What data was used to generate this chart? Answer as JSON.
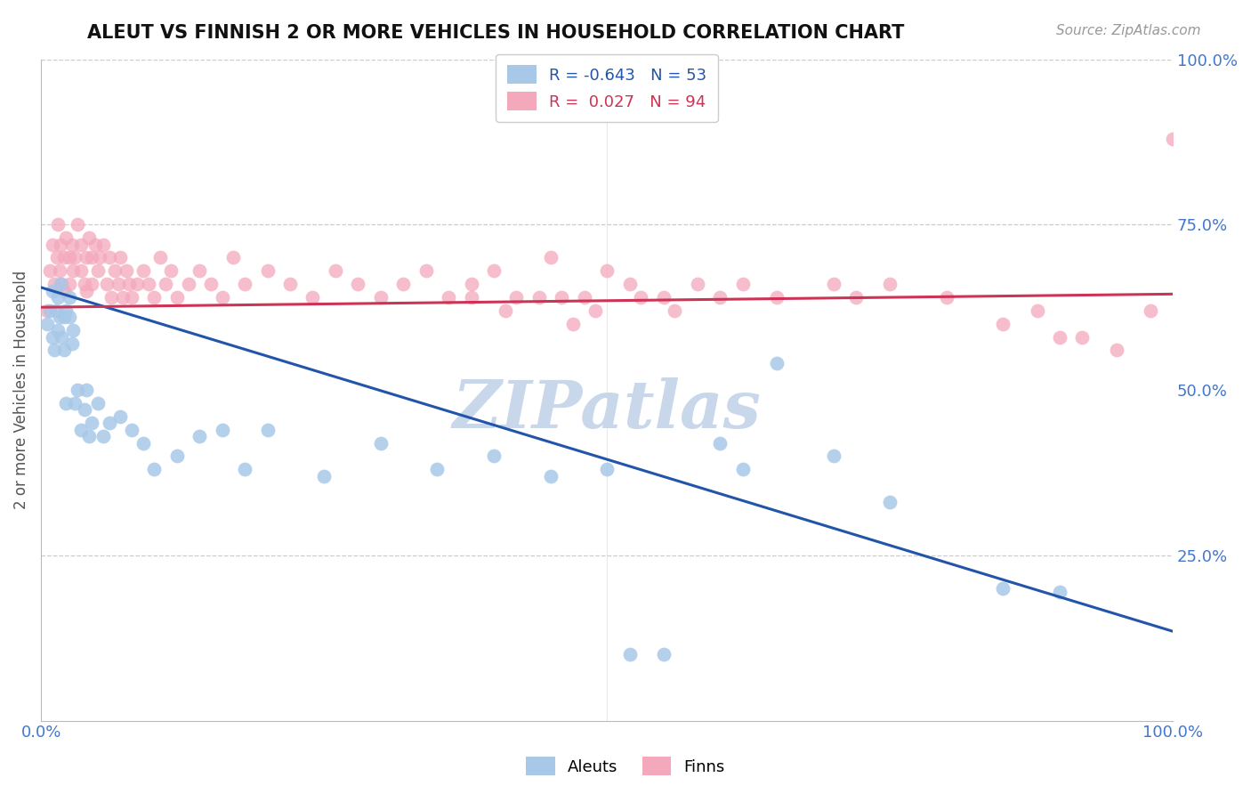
{
  "title": "ALEUT VS FINNISH 2 OR MORE VEHICLES IN HOUSEHOLD CORRELATION CHART",
  "source_text": "Source: ZipAtlas.com",
  "ylabel": "2 or more Vehicles in Household",
  "xlim": [
    0.0,
    1.0
  ],
  "ylim": [
    0.0,
    1.0
  ],
  "aleut_color": "#a8c8e8",
  "finn_color": "#f4a8bc",
  "aleut_line_color": "#2255aa",
  "finn_line_color": "#cc3355",
  "aleut_R": -0.643,
  "aleut_N": 53,
  "finn_R": 0.027,
  "finn_N": 94,
  "watermark": "ZIPatlas",
  "watermark_color": "#c8d8ea",
  "legend_label_aleut": "Aleuts",
  "legend_label_finn": "Finns",
  "aleut_line_x0": 0.0,
  "aleut_line_y0": 0.655,
  "aleut_line_x1": 1.0,
  "aleut_line_y1": 0.135,
  "finn_line_x0": 0.0,
  "finn_line_y0": 0.625,
  "finn_line_x1": 1.0,
  "finn_line_y1": 0.645,
  "aleut_x": [
    0.005,
    0.008,
    0.01,
    0.01,
    0.012,
    0.013,
    0.015,
    0.015,
    0.016,
    0.017,
    0.018,
    0.02,
    0.02,
    0.022,
    0.022,
    0.025,
    0.025,
    0.027,
    0.028,
    0.03,
    0.032,
    0.035,
    0.038,
    0.04,
    0.042,
    0.045,
    0.05,
    0.055,
    0.06,
    0.07,
    0.08,
    0.09,
    0.1,
    0.12,
    0.14,
    0.16,
    0.18,
    0.2,
    0.25,
    0.3,
    0.35,
    0.4,
    0.45,
    0.5,
    0.52,
    0.55,
    0.6,
    0.62,
    0.65,
    0.7,
    0.75,
    0.85,
    0.9
  ],
  "aleut_y": [
    0.6,
    0.62,
    0.58,
    0.65,
    0.56,
    0.62,
    0.64,
    0.59,
    0.61,
    0.66,
    0.58,
    0.61,
    0.56,
    0.62,
    0.48,
    0.61,
    0.64,
    0.57,
    0.59,
    0.48,
    0.5,
    0.44,
    0.47,
    0.5,
    0.43,
    0.45,
    0.48,
    0.43,
    0.45,
    0.46,
    0.44,
    0.42,
    0.38,
    0.4,
    0.43,
    0.44,
    0.38,
    0.44,
    0.37,
    0.42,
    0.38,
    0.4,
    0.37,
    0.38,
    0.1,
    0.1,
    0.42,
    0.38,
    0.54,
    0.4,
    0.33,
    0.2,
    0.195
  ],
  "finn_x": [
    0.005,
    0.008,
    0.01,
    0.012,
    0.014,
    0.015,
    0.016,
    0.017,
    0.018,
    0.02,
    0.02,
    0.022,
    0.025,
    0.025,
    0.027,
    0.028,
    0.03,
    0.032,
    0.035,
    0.035,
    0.038,
    0.04,
    0.04,
    0.042,
    0.045,
    0.045,
    0.048,
    0.05,
    0.052,
    0.055,
    0.058,
    0.06,
    0.062,
    0.065,
    0.068,
    0.07,
    0.072,
    0.075,
    0.078,
    0.08,
    0.085,
    0.09,
    0.095,
    0.1,
    0.105,
    0.11,
    0.115,
    0.12,
    0.13,
    0.14,
    0.15,
    0.16,
    0.17,
    0.18,
    0.2,
    0.22,
    0.24,
    0.26,
    0.28,
    0.3,
    0.32,
    0.34,
    0.36,
    0.38,
    0.4,
    0.42,
    0.45,
    0.48,
    0.5,
    0.52,
    0.55,
    0.58,
    0.6,
    0.62,
    0.65,
    0.7,
    0.72,
    0.75,
    0.8,
    0.85,
    0.88,
    0.9,
    0.92,
    0.95,
    0.98,
    1.0,
    0.46,
    0.49,
    0.53,
    0.56,
    0.38,
    0.41,
    0.44,
    0.47
  ],
  "finn_y": [
    0.62,
    0.68,
    0.72,
    0.66,
    0.7,
    0.75,
    0.68,
    0.72,
    0.66,
    0.7,
    0.65,
    0.73,
    0.7,
    0.66,
    0.72,
    0.68,
    0.7,
    0.75,
    0.68,
    0.72,
    0.66,
    0.7,
    0.65,
    0.73,
    0.7,
    0.66,
    0.72,
    0.68,
    0.7,
    0.72,
    0.66,
    0.7,
    0.64,
    0.68,
    0.66,
    0.7,
    0.64,
    0.68,
    0.66,
    0.64,
    0.66,
    0.68,
    0.66,
    0.64,
    0.7,
    0.66,
    0.68,
    0.64,
    0.66,
    0.68,
    0.66,
    0.64,
    0.7,
    0.66,
    0.68,
    0.66,
    0.64,
    0.68,
    0.66,
    0.64,
    0.66,
    0.68,
    0.64,
    0.66,
    0.68,
    0.64,
    0.7,
    0.64,
    0.68,
    0.66,
    0.64,
    0.66,
    0.64,
    0.66,
    0.64,
    0.66,
    0.64,
    0.66,
    0.64,
    0.6,
    0.62,
    0.58,
    0.58,
    0.56,
    0.62,
    0.88,
    0.64,
    0.62,
    0.64,
    0.62,
    0.64,
    0.62,
    0.64,
    0.6
  ]
}
